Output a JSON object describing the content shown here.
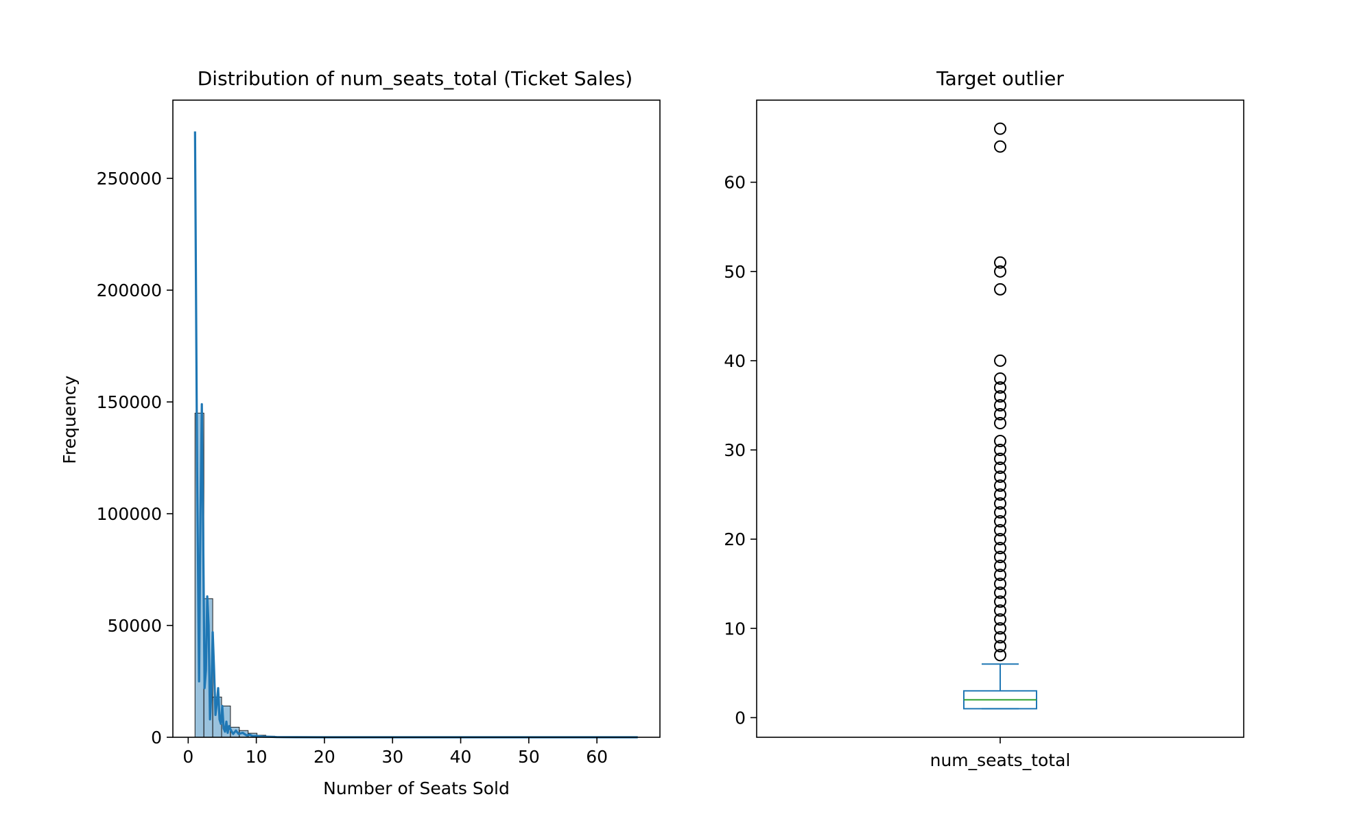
{
  "chart_data": [
    {
      "type": "histogram",
      "title": "Distribution of num_seats_total (Ticket Sales)",
      "xlabel": "Number of Seats Sold",
      "ylabel": "Frequency",
      "xlim": [
        -2.25,
        69.25
      ],
      "ylim": [
        0,
        285000
      ],
      "xticks": [
        0,
        10,
        20,
        30,
        40,
        50,
        60
      ],
      "yticks": [
        0,
        50000,
        100000,
        150000,
        200000,
        250000
      ],
      "grid": false,
      "color": "#1f77b4",
      "bins": [
        {
          "x0": 1,
          "x1": 2.3,
          "count": 145000
        },
        {
          "x0": 2.3,
          "x1": 3.6,
          "count": 62000
        },
        {
          "x0": 3.6,
          "x1": 4.9,
          "count": 18000
        },
        {
          "x0": 4.9,
          "x1": 6.2,
          "count": 14000
        },
        {
          "x0": 6.2,
          "x1": 7.5,
          "count": 4500
        },
        {
          "x0": 7.5,
          "x1": 8.8,
          "count": 3000
        },
        {
          "x0": 8.8,
          "x1": 10.1,
          "count": 1800
        },
        {
          "x0": 10.1,
          "x1": 11.4,
          "count": 900
        },
        {
          "x0": 11.4,
          "x1": 12.7,
          "count": 500
        },
        {
          "x0": 12.7,
          "x1": 14.0,
          "count": 300
        },
        {
          "x0": 14.0,
          "x1": 16.0,
          "count": 150
        }
      ],
      "kde": {
        "x": [
          1.0,
          1.3,
          1.6,
          1.8,
          2.0,
          2.2,
          2.4,
          2.6,
          2.8,
          3.0,
          3.2,
          3.4,
          3.6,
          3.8,
          4.0,
          4.2,
          4.4,
          4.6,
          4.8,
          5.0,
          5.2,
          5.4,
          5.6,
          5.8,
          6.0,
          6.3,
          6.6,
          7.0,
          7.4,
          8.0,
          8.6,
          9.0,
          9.5,
          10.0,
          11.0,
          12.0,
          13.0,
          14.0,
          16.0,
          20.0,
          30.0,
          40.0,
          50.0,
          60.0,
          66.0
        ],
        "y": [
          271000,
          120000,
          25000,
          100000,
          149000,
          90000,
          22000,
          30000,
          63000,
          50000,
          8000,
          20000,
          47000,
          30000,
          10000,
          15000,
          22000,
          8000,
          6000,
          14000,
          4000,
          2500,
          7000,
          2000,
          5000,
          3000,
          1500,
          3000,
          1500,
          2000,
          800,
          1200,
          500,
          600,
          300,
          200,
          100,
          50,
          20,
          5,
          0,
          0,
          0,
          0,
          0
        ]
      }
    },
    {
      "type": "boxplot",
      "title": "Target outlier",
      "category": "num_seats_total",
      "ylim": [
        -2.2,
        69.2
      ],
      "yticks": [
        0,
        10,
        20,
        30,
        40,
        50,
        60
      ],
      "grid": false,
      "color": "#1f77b4",
      "median_color": "#2ca02c",
      "q1": 1,
      "median": 2,
      "q3": 3,
      "whisker_low": 1,
      "whisker_high": 6,
      "outliers": [
        7,
        8,
        9,
        10,
        11,
        12,
        13,
        14,
        15,
        16,
        17,
        18,
        19,
        20,
        21,
        22,
        23,
        24,
        25,
        26,
        27,
        28,
        29,
        30,
        31,
        33,
        34,
        35,
        36,
        37,
        38,
        40,
        48,
        50,
        51,
        64,
        66
      ]
    }
  ]
}
